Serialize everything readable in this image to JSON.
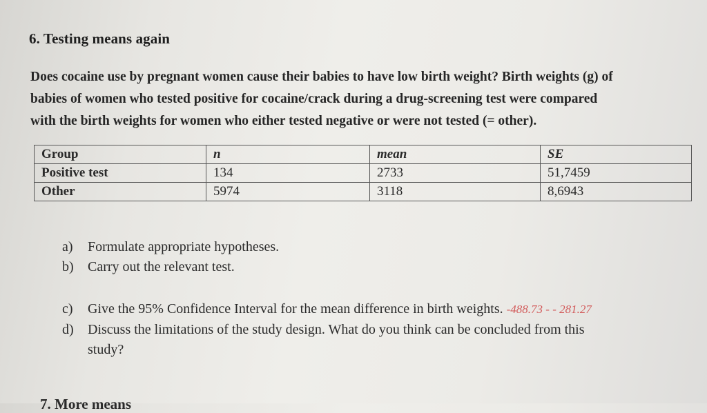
{
  "section_title": "6. Testing means again",
  "intro_lines": [
    "Does cocaine use by pregnant women cause their babies to have low birth weight? Birth weights (g) of",
    "babies of women who tested positive for cocaine/crack during a drug-screening test were compared",
    "with the birth weights for women who either tested negative or were not tested (= other)."
  ],
  "table": {
    "headers": [
      "Group",
      "n",
      "mean",
      "SE"
    ],
    "rows": [
      [
        "Positive test",
        "134",
        "2733",
        "51,7459"
      ],
      [
        "Other",
        "5974",
        "3118",
        "8,6943"
      ]
    ]
  },
  "questions": {
    "a": {
      "label": "a)",
      "text": "Formulate appropriate hypotheses."
    },
    "b": {
      "label": "b)",
      "text": "Carry out the relevant test."
    },
    "c": {
      "label": "c)",
      "text": "Give the 95% Confidence Interval for the mean difference in birth weights.",
      "answer": "-488.73 - - 281.27"
    },
    "d": {
      "label": "d)",
      "line1": "Discuss the limitations of the study design. What do you think can be concluded from this",
      "line2": "study?"
    }
  },
  "next_section_title": "7. More means"
}
